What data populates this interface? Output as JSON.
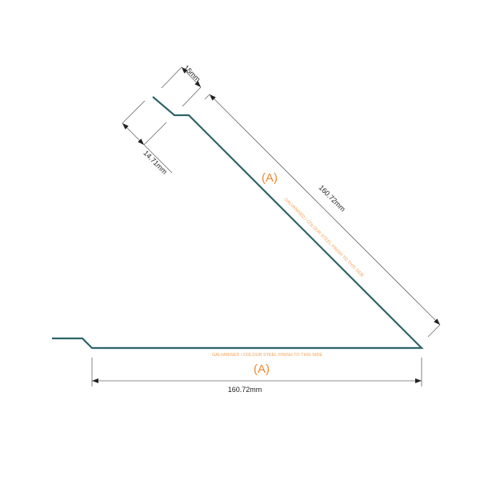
{
  "drawing": {
    "profile_color": "#2e6468",
    "annotation_color": "#f08a30",
    "dimensions": {
      "top_lip": "15mm",
      "top_return": "14.71mm",
      "slant_length": "160.72mm",
      "base_length": "160.72mm"
    },
    "finish_notes": {
      "slant": "GALVANISED / COLOUR STEEL FINISH TO THIS SIDE",
      "base": "GALVANISED / COLOUR STEEL FINISH TO THIS SIDE"
    },
    "side_markers": {
      "slant": "(A)",
      "base": "(A)"
    }
  }
}
